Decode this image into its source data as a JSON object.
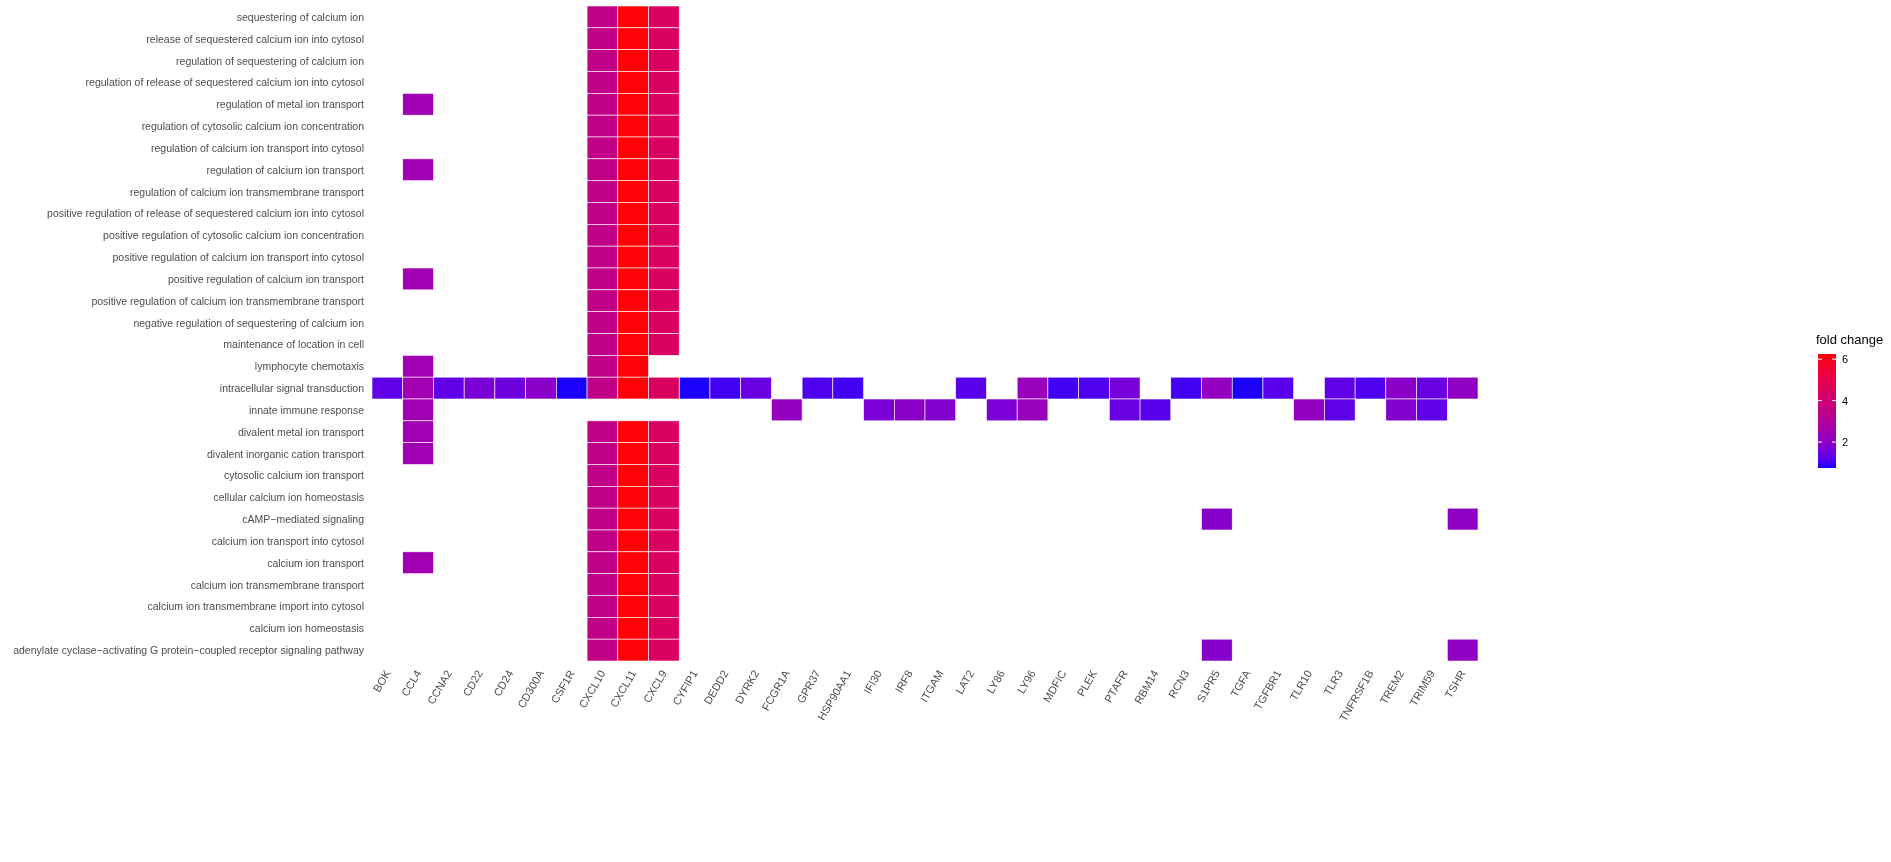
{
  "chart_data": {
    "type": "heatmap",
    "clabel": "fold change",
    "clim": [
      0.75,
      6.25
    ],
    "cticks": [
      2,
      4,
      6
    ],
    "categories": [
      "BOK",
      "CCL4",
      "CCNA2",
      "CD22",
      "CD24",
      "CD300A",
      "CSF1R",
      "CXCL10",
      "CXCL11",
      "CXCL9",
      "CYFIP1",
      "DEDD2",
      "DYRK2",
      "FCGR1A",
      "GPR37",
      "HSP90AA1",
      "IFI30",
      "IRF8",
      "ITGAM",
      "LAT2",
      "LY86",
      "LY96",
      "MDFIC",
      "PLEK",
      "PTAFR",
      "RBM14",
      "RCN3",
      "S1PR5",
      "TGFA",
      "TGFBR1",
      "TLR10",
      "TLR3",
      "TNFRSF1B",
      "TREM2",
      "TRIM59",
      "TSHR"
    ],
    "y_categories": [
      "sequestering of calcium ion",
      "release of sequestered calcium ion into cytosol",
      "regulation of sequestering of calcium ion",
      "regulation of release of sequestered calcium ion into cytosol",
      "regulation of metal ion transport",
      "regulation of cytosolic calcium ion concentration",
      "regulation of calcium ion transport into cytosol",
      "regulation of calcium ion transport",
      "regulation of calcium ion transmembrane transport",
      "positive regulation of release of sequestered calcium ion into cytosol",
      "positive regulation of cytosolic calcium ion concentration",
      "positive regulation of calcium ion transport into cytosol",
      "positive regulation of calcium ion transport",
      "positive regulation of calcium ion transmembrane transport",
      "negative regulation of sequestering of calcium ion",
      "maintenance of location in cell",
      "lymphocyte chemotaxis",
      "intracellular signal transduction",
      "innate immune response",
      "divalent metal ion transport",
      "divalent inorganic cation transport",
      "cytosolic calcium ion transport",
      "cellular calcium ion homeostasis",
      "cAMP−mediated signaling",
      "calcium ion transport into cytosol",
      "calcium ion transport",
      "calcium ion transmembrane transport",
      "calcium ion transmembrane import into cytosol",
      "calcium ion homeostasis",
      "adenylate cyclase−activating G protein−coupled receptor signaling pathway"
    ],
    "cells": [
      [
        null,
        null,
        null,
        null,
        null,
        null,
        null,
        3.5,
        6.2,
        4.5,
        null,
        null,
        null,
        null,
        null,
        null,
        null,
        null,
        null,
        null,
        null,
        null,
        null,
        null,
        null,
        null,
        null,
        null,
        null,
        null,
        null,
        null,
        null,
        null,
        null,
        null
      ],
      [
        null,
        null,
        null,
        null,
        null,
        null,
        null,
        3.5,
        6.2,
        4.5,
        null,
        null,
        null,
        null,
        null,
        null,
        null,
        null,
        null,
        null,
        null,
        null,
        null,
        null,
        null,
        null,
        null,
        null,
        null,
        null,
        null,
        null,
        null,
        null,
        null,
        null
      ],
      [
        null,
        null,
        null,
        null,
        null,
        null,
        null,
        3.5,
        6.2,
        4.5,
        null,
        null,
        null,
        null,
        null,
        null,
        null,
        null,
        null,
        null,
        null,
        null,
        null,
        null,
        null,
        null,
        null,
        null,
        null,
        null,
        null,
        null,
        null,
        null,
        null,
        null
      ],
      [
        null,
        null,
        null,
        null,
        null,
        null,
        null,
        3.5,
        6.2,
        4.5,
        null,
        null,
        null,
        null,
        null,
        null,
        null,
        null,
        null,
        null,
        null,
        null,
        null,
        null,
        null,
        null,
        null,
        null,
        null,
        null,
        null,
        null,
        null,
        null,
        null,
        null
      ],
      [
        null,
        2.5,
        null,
        null,
        null,
        null,
        null,
        3.5,
        6.2,
        4.5,
        null,
        null,
        null,
        null,
        null,
        null,
        null,
        null,
        null,
        null,
        null,
        null,
        null,
        null,
        null,
        null,
        null,
        null,
        null,
        null,
        null,
        null,
        null,
        null,
        null,
        null
      ],
      [
        null,
        null,
        null,
        null,
        null,
        null,
        null,
        3.5,
        6.2,
        4.5,
        null,
        null,
        null,
        null,
        null,
        null,
        null,
        null,
        null,
        null,
        null,
        null,
        null,
        null,
        null,
        null,
        null,
        null,
        null,
        null,
        null,
        null,
        null,
        null,
        null,
        null
      ],
      [
        null,
        null,
        null,
        null,
        null,
        null,
        null,
        3.5,
        6.2,
        4.5,
        null,
        null,
        null,
        null,
        null,
        null,
        null,
        null,
        null,
        null,
        null,
        null,
        null,
        null,
        null,
        null,
        null,
        null,
        null,
        null,
        null,
        null,
        null,
        null,
        null,
        null
      ],
      [
        null,
        2.5,
        null,
        null,
        null,
        null,
        null,
        3.5,
        6.2,
        4.5,
        null,
        null,
        null,
        null,
        null,
        null,
        null,
        null,
        null,
        null,
        null,
        null,
        null,
        null,
        null,
        null,
        null,
        null,
        null,
        null,
        null,
        null,
        null,
        null,
        null,
        null
      ],
      [
        null,
        null,
        null,
        null,
        null,
        null,
        null,
        3.5,
        6.2,
        4.5,
        null,
        null,
        null,
        null,
        null,
        null,
        null,
        null,
        null,
        null,
        null,
        null,
        null,
        null,
        null,
        null,
        null,
        null,
        null,
        null,
        null,
        null,
        null,
        null,
        null,
        null
      ],
      [
        null,
        null,
        null,
        null,
        null,
        null,
        null,
        3.5,
        6.2,
        4.5,
        null,
        null,
        null,
        null,
        null,
        null,
        null,
        null,
        null,
        null,
        null,
        null,
        null,
        null,
        null,
        null,
        null,
        null,
        null,
        null,
        null,
        null,
        null,
        null,
        null,
        null
      ],
      [
        null,
        null,
        null,
        null,
        null,
        null,
        null,
        3.5,
        6.2,
        4.5,
        null,
        null,
        null,
        null,
        null,
        null,
        null,
        null,
        null,
        null,
        null,
        null,
        null,
        null,
        null,
        null,
        null,
        null,
        null,
        null,
        null,
        null,
        null,
        null,
        null,
        null
      ],
      [
        null,
        null,
        null,
        null,
        null,
        null,
        null,
        3.5,
        6.2,
        4.5,
        null,
        null,
        null,
        null,
        null,
        null,
        null,
        null,
        null,
        null,
        null,
        null,
        null,
        null,
        null,
        null,
        null,
        null,
        null,
        null,
        null,
        null,
        null,
        null,
        null,
        null
      ],
      [
        null,
        2.5,
        null,
        null,
        null,
        null,
        null,
        3.5,
        6.2,
        4.5,
        null,
        null,
        null,
        null,
        null,
        null,
        null,
        null,
        null,
        null,
        null,
        null,
        null,
        null,
        null,
        null,
        null,
        null,
        null,
        null,
        null,
        null,
        null,
        null,
        null,
        null
      ],
      [
        null,
        null,
        null,
        null,
        null,
        null,
        null,
        3.5,
        6.2,
        4.5,
        null,
        null,
        null,
        null,
        null,
        null,
        null,
        null,
        null,
        null,
        null,
        null,
        null,
        null,
        null,
        null,
        null,
        null,
        null,
        null,
        null,
        null,
        null,
        null,
        null,
        null
      ],
      [
        null,
        null,
        null,
        null,
        null,
        null,
        null,
        3.5,
        6.2,
        4.5,
        null,
        null,
        null,
        null,
        null,
        null,
        null,
        null,
        null,
        null,
        null,
        null,
        null,
        null,
        null,
        null,
        null,
        null,
        null,
        null,
        null,
        null,
        null,
        null,
        null,
        null
      ],
      [
        null,
        null,
        null,
        null,
        null,
        null,
        null,
        3.5,
        6.2,
        4.5,
        null,
        null,
        null,
        null,
        null,
        null,
        null,
        null,
        null,
        null,
        null,
        null,
        null,
        null,
        null,
        null,
        null,
        null,
        null,
        null,
        null,
        null,
        null,
        null,
        null,
        null
      ],
      [
        null,
        2.5,
        null,
        null,
        null,
        null,
        null,
        3.5,
        6.2,
        null,
        null,
        null,
        null,
        null,
        null,
        null,
        null,
        null,
        null,
        null,
        null,
        null,
        null,
        null,
        null,
        null,
        null,
        null,
        null,
        null,
        null,
        null,
        null,
        null,
        null,
        null
      ],
      [
        1.3,
        2.5,
        1.3,
        1.7,
        1.5,
        2.0,
        0.8,
        3.5,
        6.2,
        4.5,
        0.8,
        1.0,
        1.4,
        null,
        1.1,
        1.0,
        null,
        null,
        null,
        1.2,
        null,
        2.3,
        1.0,
        1.1,
        1.6,
        null,
        1.0,
        2.2,
        0.8,
        1.2,
        null,
        1.3,
        1.1,
        2.0,
        1.4,
        2.1
      ],
      [
        null,
        2.5,
        null,
        null,
        null,
        null,
        null,
        null,
        null,
        null,
        null,
        null,
        null,
        2.2,
        null,
        null,
        1.7,
        2.0,
        1.8,
        null,
        1.7,
        2.3,
        null,
        null,
        1.4,
        1.2,
        null,
        null,
        null,
        null,
        2.2,
        1.3,
        null,
        1.8,
        1.3,
        null
      ],
      [
        null,
        2.5,
        null,
        null,
        null,
        null,
        null,
        3.5,
        6.2,
        4.5,
        null,
        null,
        null,
        null,
        null,
        null,
        null,
        null,
        null,
        null,
        null,
        null,
        null,
        null,
        null,
        null,
        null,
        null,
        null,
        null,
        null,
        null,
        null,
        null,
        null,
        null
      ],
      [
        null,
        2.5,
        null,
        null,
        null,
        null,
        null,
        3.5,
        6.2,
        4.5,
        null,
        null,
        null,
        null,
        null,
        null,
        null,
        null,
        null,
        null,
        null,
        null,
        null,
        null,
        null,
        null,
        null,
        null,
        null,
        null,
        null,
        null,
        null,
        null,
        null,
        null
      ],
      [
        null,
        null,
        null,
        null,
        null,
        null,
        null,
        3.5,
        6.2,
        4.5,
        null,
        null,
        null,
        null,
        null,
        null,
        null,
        null,
        null,
        null,
        null,
        null,
        null,
        null,
        null,
        null,
        null,
        null,
        null,
        null,
        null,
        null,
        null,
        null,
        null,
        null
      ],
      [
        null,
        null,
        null,
        null,
        null,
        null,
        null,
        3.5,
        6.2,
        4.5,
        null,
        null,
        null,
        null,
        null,
        null,
        null,
        null,
        null,
        null,
        null,
        null,
        null,
        null,
        null,
        null,
        null,
        null,
        null,
        null,
        null,
        null,
        null,
        null,
        null,
        null
      ],
      [
        null,
        null,
        null,
        null,
        null,
        null,
        null,
        3.5,
        6.2,
        4.5,
        null,
        null,
        null,
        null,
        null,
        null,
        null,
        null,
        null,
        null,
        null,
        null,
        null,
        null,
        null,
        null,
        null,
        1.9,
        null,
        null,
        null,
        null,
        null,
        null,
        null,
        2.1
      ],
      [
        null,
        null,
        null,
        null,
        null,
        null,
        null,
        3.5,
        6.2,
        4.5,
        null,
        null,
        null,
        null,
        null,
        null,
        null,
        null,
        null,
        null,
        null,
        null,
        null,
        null,
        null,
        null,
        null,
        null,
        null,
        null,
        null,
        null,
        null,
        null,
        null,
        null
      ],
      [
        null,
        2.5,
        null,
        null,
        null,
        null,
        null,
        3.5,
        6.2,
        4.5,
        null,
        null,
        null,
        null,
        null,
        null,
        null,
        null,
        null,
        null,
        null,
        null,
        null,
        null,
        null,
        null,
        null,
        null,
        null,
        null,
        null,
        null,
        null,
        null,
        null,
        null
      ],
      [
        null,
        null,
        null,
        null,
        null,
        null,
        null,
        3.5,
        6.2,
        4.5,
        null,
        null,
        null,
        null,
        null,
        null,
        null,
        null,
        null,
        null,
        null,
        null,
        null,
        null,
        null,
        null,
        null,
        null,
        null,
        null,
        null,
        null,
        null,
        null,
        null,
        null
      ],
      [
        null,
        null,
        null,
        null,
        null,
        null,
        null,
        3.5,
        6.2,
        4.5,
        null,
        null,
        null,
        null,
        null,
        null,
        null,
        null,
        null,
        null,
        null,
        null,
        null,
        null,
        null,
        null,
        null,
        null,
        null,
        null,
        null,
        null,
        null,
        null,
        null,
        null
      ],
      [
        null,
        null,
        null,
        null,
        null,
        null,
        null,
        3.5,
        6.2,
        4.5,
        null,
        null,
        null,
        null,
        null,
        null,
        null,
        null,
        null,
        null,
        null,
        null,
        null,
        null,
        null,
        null,
        null,
        null,
        null,
        null,
        null,
        null,
        null,
        null,
        null,
        null
      ],
      [
        null,
        null,
        null,
        null,
        null,
        null,
        null,
        3.5,
        6.2,
        4.5,
        null,
        null,
        null,
        null,
        null,
        null,
        null,
        null,
        null,
        null,
        null,
        null,
        null,
        null,
        null,
        null,
        null,
        1.9,
        null,
        null,
        null,
        null,
        null,
        null,
        null,
        2.1
      ]
    ]
  }
}
